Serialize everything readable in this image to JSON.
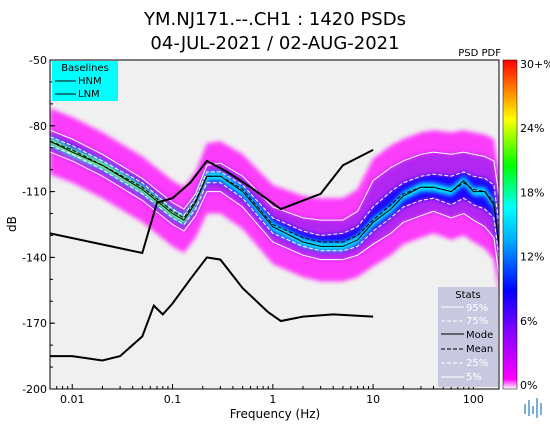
{
  "chart_data": {
    "type": "heatmap",
    "title": "YM.NJ171.--.CH1 : 1420 PSDs",
    "subtitle": "04-JUL-2021 / 02-AUG-2021",
    "xlabel": "Frequency (Hz)",
    "ylabel": "dB",
    "xscale": "log",
    "xlim": [
      0.006,
      180
    ],
    "ylim": [
      -200,
      -50
    ],
    "x_ticks": [
      {
        "value": 0.01,
        "label": "0.01"
      },
      {
        "value": 0.1,
        "label": "0.1"
      },
      {
        "value": 1,
        "label": "1"
      },
      {
        "value": 10,
        "label": "10"
      },
      {
        "value": 100,
        "label": "100"
      }
    ],
    "y_ticks": [
      {
        "value": -50,
        "label": "-50"
      },
      {
        "value": -80,
        "label": "-80"
      },
      {
        "value": -110,
        "label": "-110"
      },
      {
        "value": -140,
        "label": "-140"
      },
      {
        "value": -170,
        "label": "-170"
      },
      {
        "value": -200,
        "label": "-200"
      }
    ],
    "colorbar": {
      "label": "PSD PDF",
      "ticks": [
        "30+%",
        "24%",
        "18%",
        "12%",
        "6%",
        "0%"
      ],
      "colors": [
        "#ff0000",
        "#ffff00",
        "#00ff00",
        "#00ffff",
        "#0000ff",
        "#ff00ff",
        "#ffffff"
      ]
    },
    "baselines_legend": {
      "title": "Baselines",
      "items": [
        "HNM",
        "LNM"
      ],
      "bg": "#00ffff"
    },
    "stats_legend": {
      "title": "Stats",
      "items": [
        "95%",
        "75%",
        "Mode",
        "Mean",
        "25%",
        "5%"
      ],
      "bg": "#c8c8e0"
    },
    "series": [
      {
        "name": "HNM",
        "color": "#000000",
        "x": [
          0.006,
          0.05,
          0.07,
          0.1,
          0.15,
          0.22,
          0.35,
          0.6,
          1.2,
          3,
          5,
          10
        ],
        "y": [
          -129,
          -138,
          -115,
          -113,
          -106,
          -96,
          -101,
          -108,
          -118,
          -111,
          -98,
          -91
        ]
      },
      {
        "name": "LNM",
        "color": "#000000",
        "x": [
          0.006,
          0.01,
          0.02,
          0.03,
          0.05,
          0.065,
          0.08,
          0.1,
          0.15,
          0.22,
          0.3,
          0.5,
          0.9,
          1.2,
          2,
          4,
          10
        ],
        "y": [
          -185,
          -185,
          -187,
          -185,
          -176,
          -162,
          -166,
          -161,
          -150,
          -140,
          -141,
          -154,
          -165,
          -169,
          -167,
          -166,
          -167
        ]
      },
      {
        "name": "Mode",
        "x": [
          0.006,
          0.01,
          0.02,
          0.05,
          0.1,
          0.13,
          0.17,
          0.22,
          0.3,
          0.5,
          1,
          2,
          3,
          5,
          7,
          10,
          15,
          20,
          30,
          40,
          60,
          80,
          100,
          130,
          160,
          180
        ],
        "y": [
          -87,
          -92,
          -98,
          -109,
          -120,
          -123,
          -115,
          -103,
          -103,
          -110,
          -126,
          -133,
          -135,
          -135,
          -132,
          -124,
          -118,
          -112,
          -108,
          -108,
          -110,
          -105,
          -110,
          -110,
          -116,
          -135
        ]
      },
      {
        "name": "Mean",
        "x": [
          0.006,
          0.01,
          0.02,
          0.05,
          0.1,
          0.13,
          0.17,
          0.22,
          0.3,
          0.5,
          1,
          2,
          3,
          5,
          7,
          10,
          15,
          20,
          30,
          40,
          60,
          80,
          100,
          130,
          160,
          180
        ],
        "y": [
          -87,
          -91,
          -98,
          -108,
          -119,
          -122,
          -114,
          -103,
          -103,
          -109,
          -125,
          -131,
          -133,
          -133,
          -130,
          -123,
          -116,
          -111,
          -108,
          -108,
          -110,
          -106,
          -109,
          -110,
          -115,
          -134
        ]
      },
      {
        "name": "95%",
        "x": [
          0.006,
          0.01,
          0.02,
          0.05,
          0.1,
          0.13,
          0.17,
          0.22,
          0.3,
          0.5,
          1,
          2,
          3,
          5,
          7,
          10,
          15,
          20,
          30,
          40,
          60,
          80,
          100,
          130,
          160,
          180
        ],
        "y": [
          -82,
          -86,
          -93,
          -104,
          -115,
          -118,
          -111,
          -98,
          -97,
          -103,
          -117,
          -122,
          -123,
          -123,
          -119,
          -105,
          -99,
          -96,
          -93,
          -92,
          -93,
          -92,
          -93,
          -94,
          -96,
          -112
        ]
      },
      {
        "name": "75%",
        "x": [
          0.006,
          0.01,
          0.02,
          0.05,
          0.1,
          0.13,
          0.17,
          0.22,
          0.3,
          0.5,
          1,
          2,
          3,
          5,
          7,
          10,
          15,
          20,
          30,
          40,
          60,
          80,
          100,
          130,
          160,
          180
        ],
        "y": [
          -85,
          -89,
          -96,
          -106,
          -118,
          -121,
          -113,
          -101,
          -101,
          -107,
          -122,
          -128,
          -130,
          -129,
          -126,
          -117,
          -110,
          -106,
          -103,
          -102,
          -103,
          -101,
          -103,
          -104,
          -107,
          -125
        ]
      },
      {
        "name": "25%",
        "x": [
          0.006,
          0.01,
          0.02,
          0.05,
          0.1,
          0.13,
          0.17,
          0.22,
          0.3,
          0.5,
          1,
          2,
          3,
          5,
          7,
          10,
          15,
          20,
          30,
          40,
          60,
          80,
          100,
          130,
          160,
          180
        ],
        "y": [
          -89,
          -93,
          -100,
          -111,
          -122,
          -125,
          -118,
          -106,
          -106,
          -113,
          -129,
          -135,
          -137,
          -137,
          -135,
          -128,
          -122,
          -117,
          -114,
          -113,
          -116,
          -113,
          -116,
          -118,
          -122,
          -140
        ]
      },
      {
        "name": "5%",
        "x": [
          0.006,
          0.01,
          0.02,
          0.05,
          0.1,
          0.13,
          0.17,
          0.22,
          0.3,
          0.5,
          1,
          2,
          3,
          5,
          7,
          10,
          15,
          20,
          30,
          40,
          60,
          80,
          100,
          130,
          160,
          180
        ],
        "y": [
          -92,
          -96,
          -103,
          -114,
          -125,
          -128,
          -121,
          -110,
          -110,
          -117,
          -133,
          -139,
          -141,
          -141,
          -139,
          -134,
          -129,
          -124,
          -121,
          -119,
          -122,
          -120,
          -123,
          -126,
          -131,
          -148
        ]
      }
    ]
  }
}
